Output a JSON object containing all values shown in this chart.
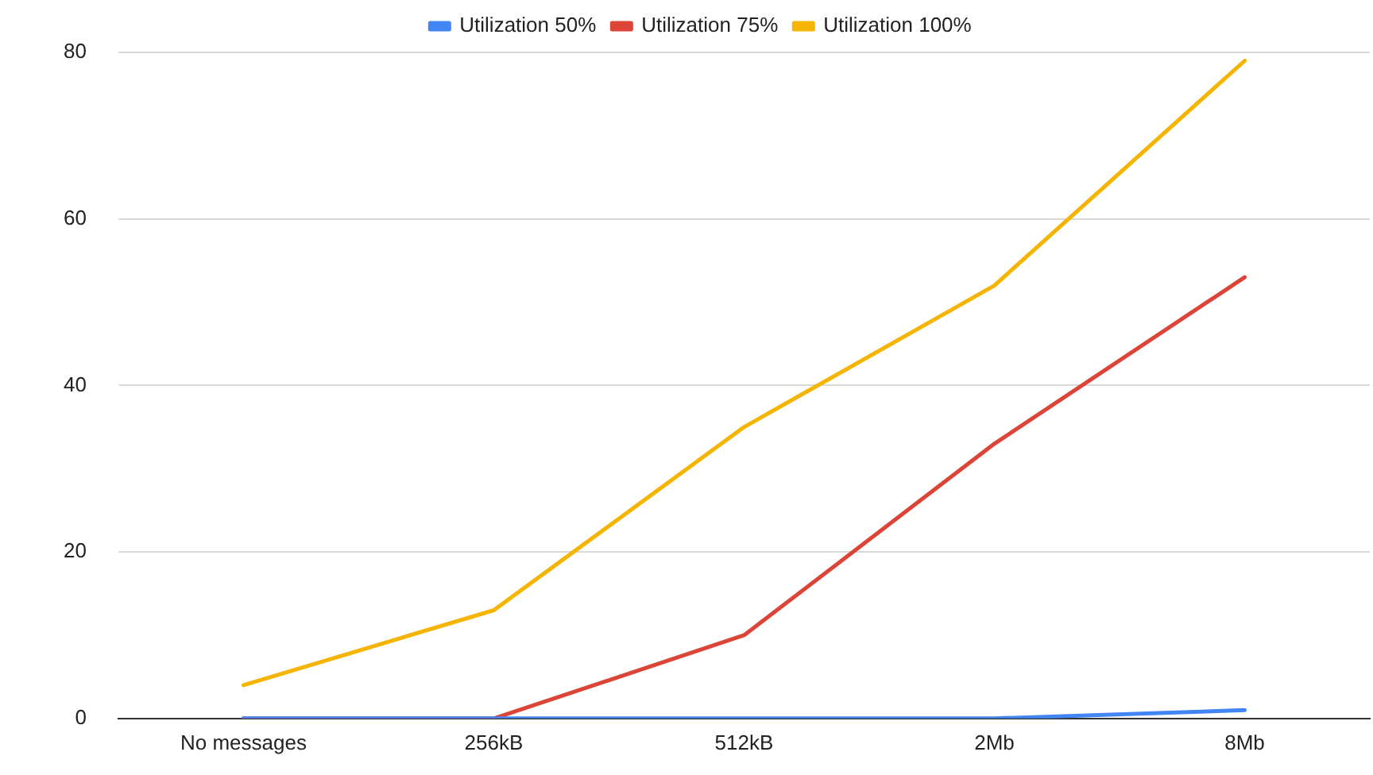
{
  "chart_data": {
    "type": "line",
    "categories": [
      "No messages",
      "256kB",
      "512kB",
      "2Mb",
      "8Mb"
    ],
    "series": [
      {
        "name": "Utilization 50%",
        "color": "#4285f4",
        "values": [
          0,
          0,
          0,
          0,
          1
        ]
      },
      {
        "name": "Utilization 75%",
        "color": "#db4437",
        "values": [
          0,
          0,
          10,
          33,
          53
        ]
      },
      {
        "name": "Utilization 100%",
        "color": "#f4b400",
        "values": [
          4,
          13,
          35,
          52,
          79
        ]
      }
    ],
    "ylim": [
      0,
      80
    ],
    "yticks": [
      0,
      20,
      40,
      60,
      80
    ],
    "grid": "y",
    "legend": "top",
    "marker": "none",
    "line_style": "solid"
  }
}
